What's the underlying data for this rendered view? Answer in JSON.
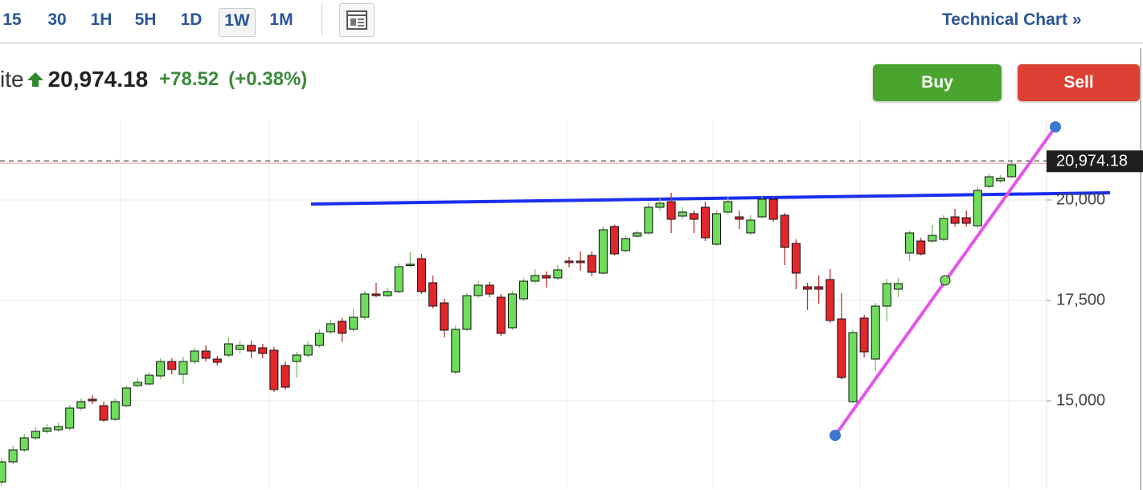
{
  "toolbar": {
    "intervals": [
      "15",
      "30",
      "1H",
      "5H",
      "1D",
      "1W",
      "1M"
    ],
    "selected": 5,
    "link": "Technical Chart »"
  },
  "quote": {
    "name": "ite",
    "price": "20,974.18",
    "change": "+78.52",
    "change_percent": "(+0.38%)"
  },
  "buttons": [
    "Buy",
    "Sell"
  ],
  "chart_data": {
    "type": "candlestick",
    "ylim": [
      12800,
      22000
    ],
    "yticks": [
      {
        "value": 15000,
        "label": "15,000"
      },
      {
        "value": 17500,
        "label": "17,500"
      },
      {
        "value": 20000,
        "label": "20,000"
      }
    ],
    "grid": true,
    "up_color": "#6fdc5c",
    "down_color": "#e3262c",
    "last_price": {
      "value": 20974.18,
      "label": "20,974.18"
    },
    "open": [
      12980,
      13480,
      13780,
      14080,
      14240,
      14280,
      14320,
      14820,
      15040,
      14880,
      14540,
      14880,
      15380,
      15420,
      15620,
      15980,
      15660,
      15980,
      16240,
      16040,
      16140,
      16280,
      16380,
      16320,
      16260,
      15880,
      15980,
      16140,
      16380,
      16720,
      16980,
      16780,
      17080,
      17660,
      17620,
      17720,
      18380,
      18540,
      17940,
      17440,
      15720,
      16780,
      17620,
      17880,
      17580,
      16820,
      17540,
      17980,
      18120,
      18060,
      18480,
      18480,
      18620,
      18180,
      19340,
      18740,
      19100,
      19180,
      19820,
      19960,
      19600,
      19660,
      19820,
      18900,
      19700,
      19580,
      19180,
      19580,
      20020,
      19620,
      18920,
      17840,
      17840,
      18020,
      17040,
      14980,
      17060,
      16040,
      17360,
      17780,
      18680,
      18980,
      18980,
      19020,
      19580,
      19560,
      19360,
      20340,
      20480,
      20580
    ],
    "high": [
      13580,
      13880,
      14180,
      14340,
      14420,
      14460,
      14900,
      15060,
      15140,
      14980,
      15060,
      15380,
      15580,
      15720,
      16060,
      16060,
      16100,
      16320,
      16380,
      16120,
      16580,
      16500,
      16500,
      16420,
      16340,
      15980,
      16220,
      16480,
      16780,
      17020,
      17060,
      17280,
      17740,
      17940,
      17820,
      18420,
      18700,
      18660,
      18120,
      17540,
      16880,
      17680,
      17980,
      17960,
      17660,
      17740,
      18060,
      18280,
      18220,
      18380,
      18580,
      18720,
      18720,
      19340,
      19380,
      19120,
      19240,
      19920,
      20040,
      20180,
      19820,
      19740,
      19960,
      19740,
      20080,
      19740,
      19620,
      20100,
      20100,
      19680,
      19020,
      17940,
      18120,
      18280,
      17680,
      16760,
      17140,
      17440,
      18040,
      18060,
      19240,
      19060,
      19380,
      19620,
      19780,
      19740,
      20320,
      20660,
      20620,
      20960
    ],
    "low": [
      12880,
      13420,
      13720,
      14020,
      14180,
      14220,
      14260,
      14760,
      14920,
      14480,
      14500,
      14840,
      15340,
      15380,
      15540,
      15660,
      15420,
      15920,
      15980,
      15880,
      16080,
      16180,
      16060,
      16060,
      15220,
      15280,
      15580,
      16080,
      16320,
      16660,
      16460,
      16720,
      17020,
      17580,
      17580,
      17680,
      18320,
      17660,
      17300,
      16580,
      15660,
      16740,
      17560,
      17580,
      16620,
      16760,
      17480,
      17920,
      17820,
      18000,
      18320,
      18240,
      18100,
      18140,
      18620,
      18700,
      19060,
      19140,
      19740,
      19180,
      19520,
      19180,
      18980,
      18860,
      19640,
      19280,
      19140,
      19540,
      19460,
      18380,
      17780,
      17260,
      17420,
      16940,
      15540,
      14940,
      16080,
      15740,
      16980,
      17580,
      18480,
      18620,
      18940,
      18980,
      19340,
      19340,
      19300,
      20300,
      20420,
      20540
    ],
    "close": [
      13480,
      13780,
      14080,
      14240,
      14320,
      14360,
      14820,
      14980,
      15000,
      14520,
      14980,
      15320,
      15460,
      15640,
      15980,
      15780,
      15980,
      16240,
      16060,
      15960,
      16420,
      16380,
      16240,
      16180,
      15280,
      15340,
      16140,
      16380,
      16680,
      16920,
      16680,
      17080,
      17660,
      17620,
      17720,
      18340,
      18400,
      17720,
      17360,
      16760,
      16780,
      17620,
      17880,
      17660,
      16680,
      17660,
      17980,
      18120,
      18060,
      18260,
      18440,
      18440,
      18200,
      19260,
      18660,
      19040,
      19180,
      19820,
      19920,
      19520,
      19700,
      19520,
      19060,
      19660,
      19960,
      19520,
      19500,
      20020,
      19520,
      18820,
      18180,
      17780,
      17780,
      17000,
      15580,
      16700,
      16220,
      17360,
      17920,
      17920,
      19180,
      18660,
      19120,
      19540,
      19420,
      19420,
      20240,
      20580,
      20540,
      20880
    ]
  }
}
